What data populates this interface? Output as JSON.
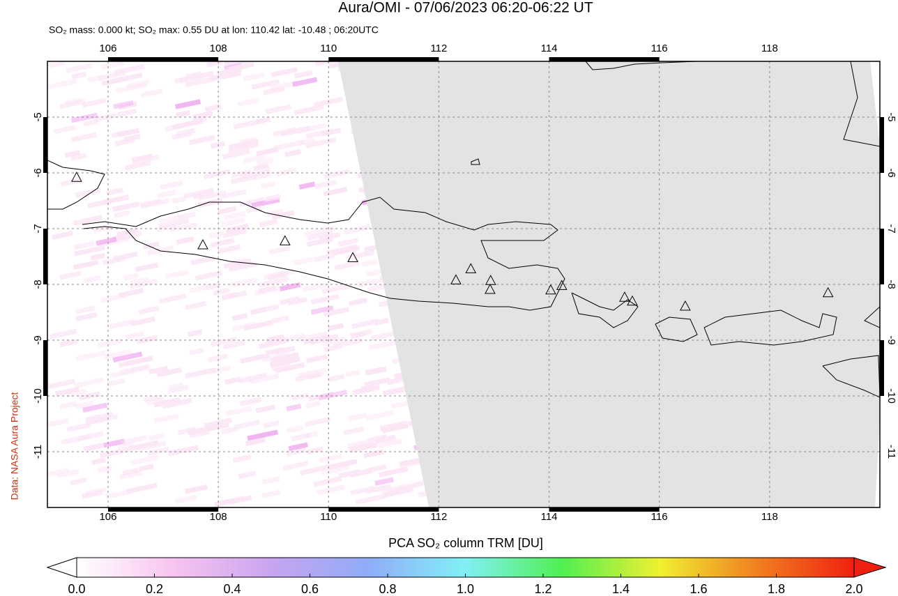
{
  "chart_data": {
    "type": "map",
    "title": "Aura/OMI - 07/06/2023 06:20-06:22 UT",
    "subtitle": "SO₂ mass: 0.000 kt; SO₂ max: 0.55 DU at lon: 110.42 lat: -10.48 ; 06:20UTC",
    "credit": "Data: NASA Aura Project",
    "xlim": [
      104.9,
      120
    ],
    "ylim": [
      -12,
      -4
    ],
    "xticks": [
      106,
      108,
      110,
      112,
      114,
      116,
      118
    ],
    "yticks": [
      -5,
      -6,
      -7,
      -8,
      -9,
      -10,
      -11
    ],
    "grid": true,
    "volcanoes": {
      "lon": [
        105.43,
        107.72,
        109.21,
        110.44,
        112.31,
        112.58,
        112.94,
        112.93,
        114.03,
        114.23,
        115.37,
        115.51,
        116.47,
        119.06
      ],
      "lat": [
        -6.09,
        -7.3,
        -7.23,
        -7.53,
        -7.93,
        -7.73,
        -7.94,
        -8.1,
        -8.11,
        -8.03,
        -8.24,
        -8.31,
        -8.4,
        -8.16
      ]
    },
    "colorbar": {
      "label": "PCA SO₂ column TRM [DU]",
      "lim": [
        0,
        2
      ],
      "colors": [
        "#ffffff",
        "#f8c4f0",
        "#c8a4f0",
        "#90acf8",
        "#80f0f4",
        "#50f050",
        "#f0f030",
        "#f08020",
        "#f02010"
      ],
      "ticks": [
        {
          "value": 0,
          "label": "0.0"
        },
        {
          "value": 0.2,
          "label": "0.2"
        },
        {
          "value": 0.4,
          "label": "0.4"
        },
        {
          "value": 0.6,
          "label": "0.6"
        },
        {
          "value": 0.8,
          "label": "0.8"
        },
        {
          "value": 1,
          "label": "1.0"
        },
        {
          "value": 1.2,
          "label": "1.2"
        },
        {
          "value": 1.4,
          "label": "1.4"
        },
        {
          "value": 1.6,
          "label": "1.6"
        },
        {
          "value": 1.8,
          "label": "1.8"
        },
        {
          "value": 2,
          "label": "2.0"
        }
      ]
    }
  }
}
